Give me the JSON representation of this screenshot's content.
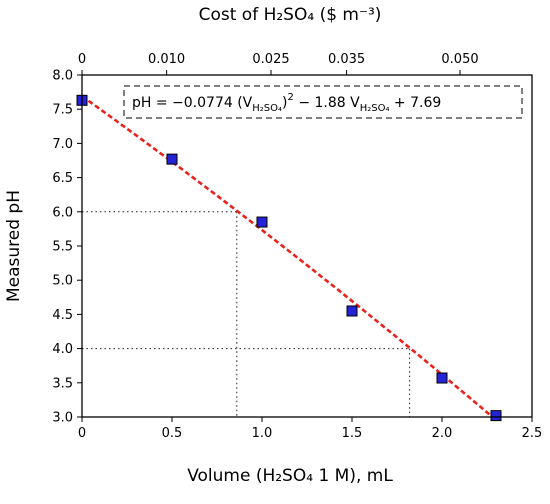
{
  "chart_data": {
    "type": "scatter",
    "xlabel": "Volume (H₂SO₄ 1 M), mL",
    "ylabel": "Measured pH",
    "top_axis_label": "Cost of H₂SO₄ ($ m⁻³)",
    "xlim": [
      0,
      2.5
    ],
    "ylim": [
      3.0,
      8.0
    ],
    "x_ticks": [
      "0",
      "0.5",
      "1.0",
      "1.5",
      "2.0",
      "2.5"
    ],
    "y_ticks": [
      "3.0",
      "3.5",
      "4.0",
      "4.5",
      "5.0",
      "5.5",
      "6.0",
      "6.5",
      "7.0",
      "7.5",
      "8.0"
    ],
    "top_ticks": [
      {
        "label": "0",
        "x": 0
      },
      {
        "label": "0.010",
        "x": 0.47
      },
      {
        "label": "0.025",
        "x": 1.05
      },
      {
        "label": "0.035",
        "x": 1.47
      },
      {
        "label": "0.050",
        "x": 2.1
      }
    ],
    "x": [
      0,
      0.5,
      1.0,
      1.5,
      2.0,
      2.3
    ],
    "y": [
      7.63,
      6.77,
      5.85,
      4.55,
      3.57,
      3.02
    ],
    "marker_color": "#2424d6",
    "fit": {
      "a": -0.0774,
      "b": -1.88,
      "c": 7.69,
      "color": "#e8231c",
      "x_end": 2.3,
      "equation": {
        "prefix": "pH = −0.0774 (V",
        "sub1": "H₂SO₄",
        "sup": "2",
        "mid": " − 1.88 V",
        "sub2": "H₂SO₄",
        "suffix": " + 7.69"
      }
    },
    "guides": [
      {
        "ph": 6.0,
        "volume": 0.86
      },
      {
        "ph": 4.0,
        "volume": 1.82
      }
    ],
    "grid": false,
    "legend": "none"
  }
}
